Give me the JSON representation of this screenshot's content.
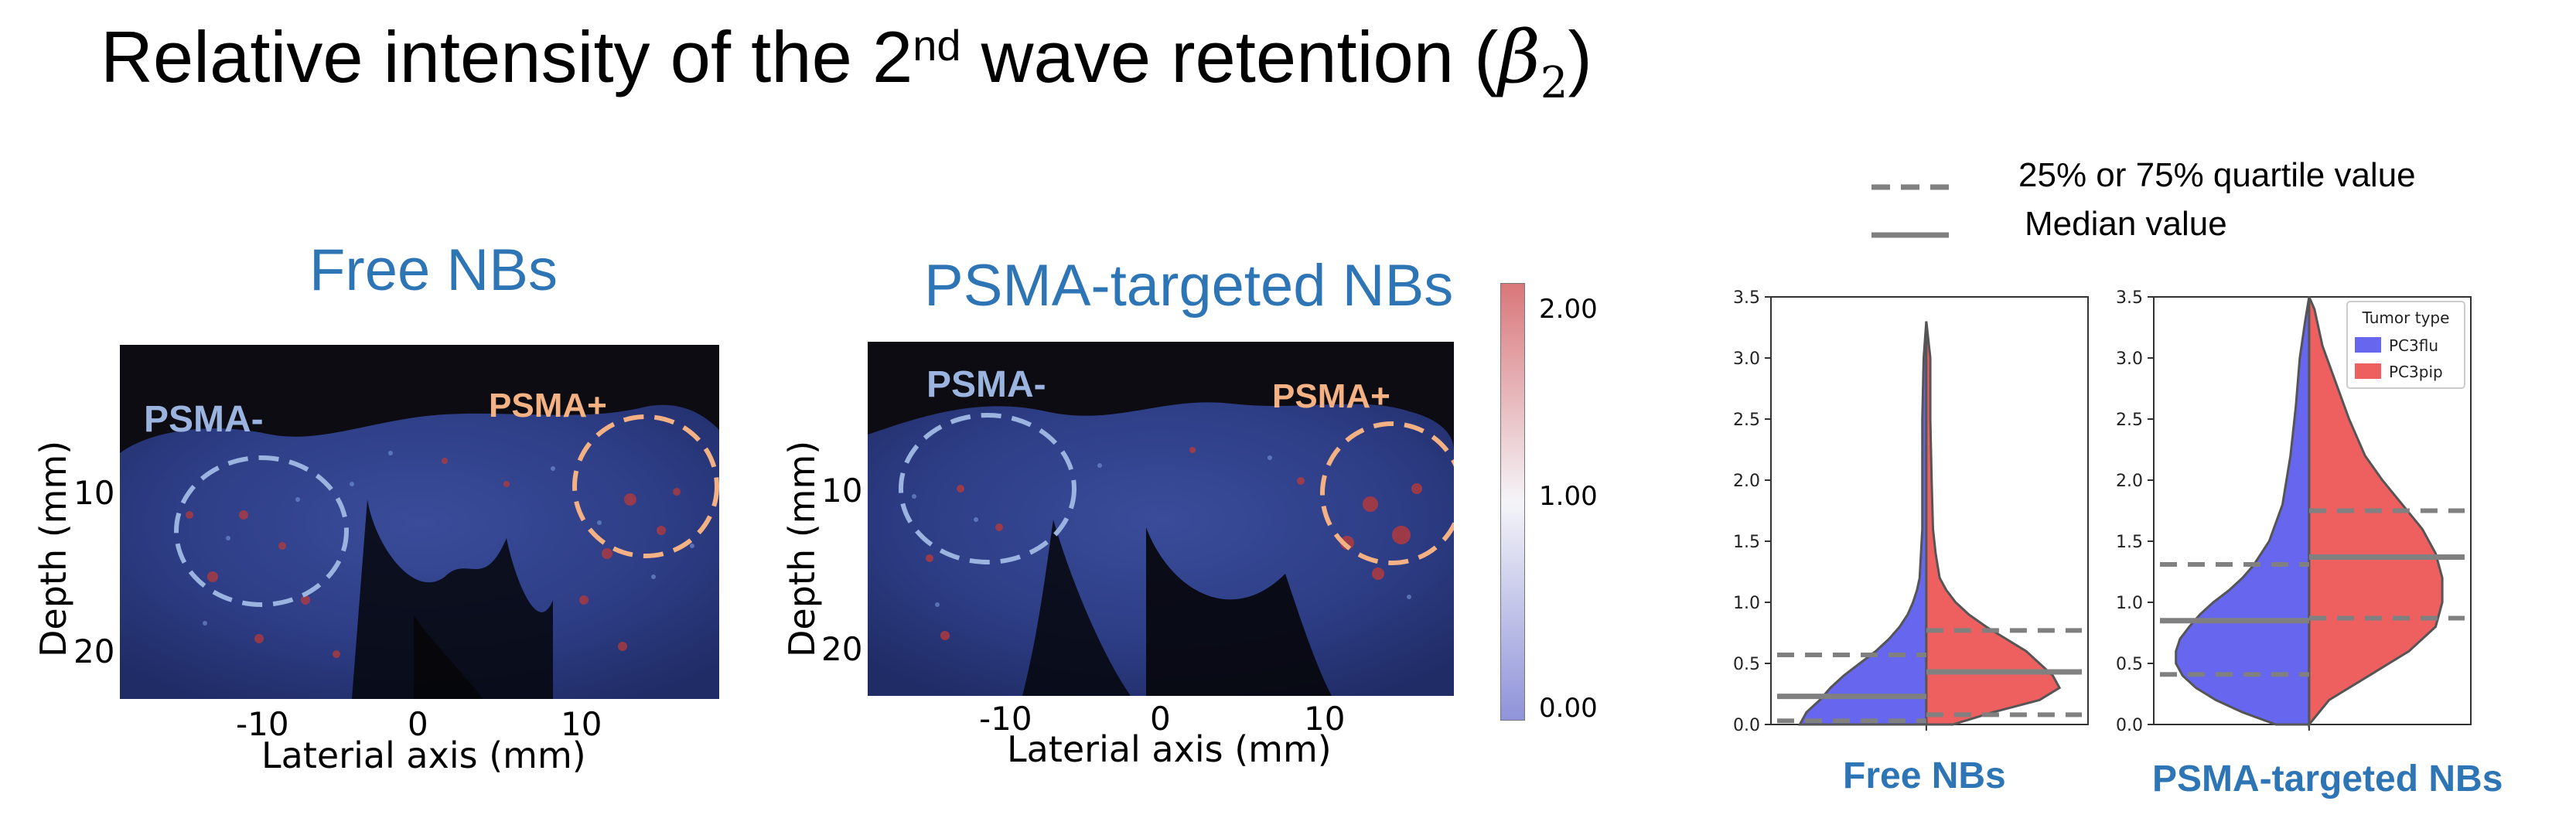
{
  "title": {
    "prefix": "Relative intensity of the 2",
    "superscript": "nd",
    "middle": " wave retention (",
    "symbol": "β",
    "subscript": "2",
    "suffix": ")"
  },
  "panels": [
    {
      "title": "Free NBs",
      "label_left": "PSMA-",
      "label_right": "PSMA+",
      "xlabel": "Laterial axis (mm)",
      "ylabel": "Depth (mm)",
      "xticks": [
        "-10",
        "0",
        "10"
      ],
      "yticks": [
        "10",
        "20"
      ]
    },
    {
      "title": "PSMA-targeted NBs",
      "label_left": "PSMA-",
      "label_right": "PSMA+",
      "xlabel": "Laterial axis (mm)",
      "ylabel": "Depth (mm)",
      "xticks": [
        "-10",
        "0",
        "10"
      ],
      "yticks": [
        "10",
        "20"
      ]
    }
  ],
  "colorbar": {
    "ticks": [
      "2.00",
      "1.00",
      "0.00"
    ],
    "colors": {
      "high": "#d9777a",
      "mid": "#f4f4f8",
      "low": "#8f93d9"
    }
  },
  "violin_legend": {
    "dashed_label": "25% or 75% quartile value",
    "solid_label": "Median value",
    "line_color": "#808080"
  },
  "colors": {
    "title_blue": "#2e75b6",
    "psma_minus": "#9ab3df",
    "psma_plus": "#f4b183",
    "pc3flu": "#6666ee",
    "pc3pip": "#ee6060"
  },
  "chart_data": [
    {
      "type": "violin",
      "caption": "Free NBs",
      "ylim": [
        0,
        3.5
      ],
      "yticks": [
        "0.0",
        "0.5",
        "1.0",
        "1.5",
        "2.0",
        "2.5",
        "3.0",
        "3.5"
      ],
      "series": [
        {
          "name": "PC3flu",
          "side": "left",
          "q25": 0.03,
          "median": 0.23,
          "q75": 0.57,
          "profile_y": [
            0,
            0.1,
            0.2,
            0.3,
            0.4,
            0.5,
            0.6,
            0.7,
            0.8,
            0.9,
            1.0,
            1.1,
            1.2,
            1.4,
            1.6,
            2.0,
            2.5,
            3.0,
            3.3
          ],
          "profile_w": [
            0.95,
            0.9,
            0.8,
            0.72,
            0.62,
            0.5,
            0.38,
            0.28,
            0.2,
            0.14,
            0.1,
            0.07,
            0.05,
            0.04,
            0.03,
            0.03,
            0.03,
            0.02,
            0.0
          ]
        },
        {
          "name": "PC3pip",
          "side": "right",
          "q25": 0.08,
          "median": 0.43,
          "q75": 0.77,
          "profile_y": [
            0,
            0.1,
            0.2,
            0.3,
            0.4,
            0.5,
            0.6,
            0.7,
            0.8,
            0.9,
            1.0,
            1.1,
            1.2,
            1.4,
            1.6,
            2.0,
            2.5,
            3.0,
            3.3
          ],
          "profile_w": [
            0.2,
            0.5,
            0.85,
            1.0,
            0.95,
            0.85,
            0.75,
            0.6,
            0.45,
            0.32,
            0.22,
            0.15,
            0.1,
            0.07,
            0.05,
            0.04,
            0.03,
            0.03,
            0.0
          ]
        }
      ]
    },
    {
      "type": "violin",
      "caption": "PSMA-targeted NBs",
      "ylim": [
        0,
        3.5
      ],
      "yticks": [
        "0.0",
        "0.5",
        "1.0",
        "1.5",
        "2.0",
        "2.5",
        "3.0",
        "3.5"
      ],
      "legend_title": "Tumor type",
      "legend_entries": [
        "PC3flu",
        "PC3pip"
      ],
      "series": [
        {
          "name": "PC3flu",
          "side": "left",
          "q25": 0.41,
          "median": 0.85,
          "q75": 1.31,
          "profile_y": [
            0,
            0.1,
            0.2,
            0.3,
            0.4,
            0.5,
            0.6,
            0.7,
            0.8,
            0.9,
            1.0,
            1.1,
            1.2,
            1.3,
            1.5,
            1.8,
            2.2,
            2.6,
            3.0,
            3.3,
            3.5
          ],
          "profile_w": [
            0.25,
            0.5,
            0.7,
            0.85,
            0.95,
            1.0,
            1.0,
            0.97,
            0.9,
            0.82,
            0.72,
            0.6,
            0.5,
            0.42,
            0.3,
            0.2,
            0.14,
            0.1,
            0.07,
            0.03,
            0.0
          ]
        },
        {
          "name": "PC3pip",
          "side": "right",
          "q25": 0.87,
          "median": 1.37,
          "q75": 1.75,
          "profile_y": [
            0,
            0.2,
            0.4,
            0.6,
            0.8,
            1.0,
            1.2,
            1.4,
            1.6,
            1.8,
            2.0,
            2.2,
            2.5,
            2.8,
            3.1,
            3.4,
            3.5
          ],
          "profile_w": [
            0.0,
            0.15,
            0.45,
            0.75,
            0.95,
            1.0,
            1.0,
            0.95,
            0.85,
            0.7,
            0.55,
            0.42,
            0.3,
            0.2,
            0.1,
            0.04,
            0.0
          ]
        }
      ]
    }
  ]
}
